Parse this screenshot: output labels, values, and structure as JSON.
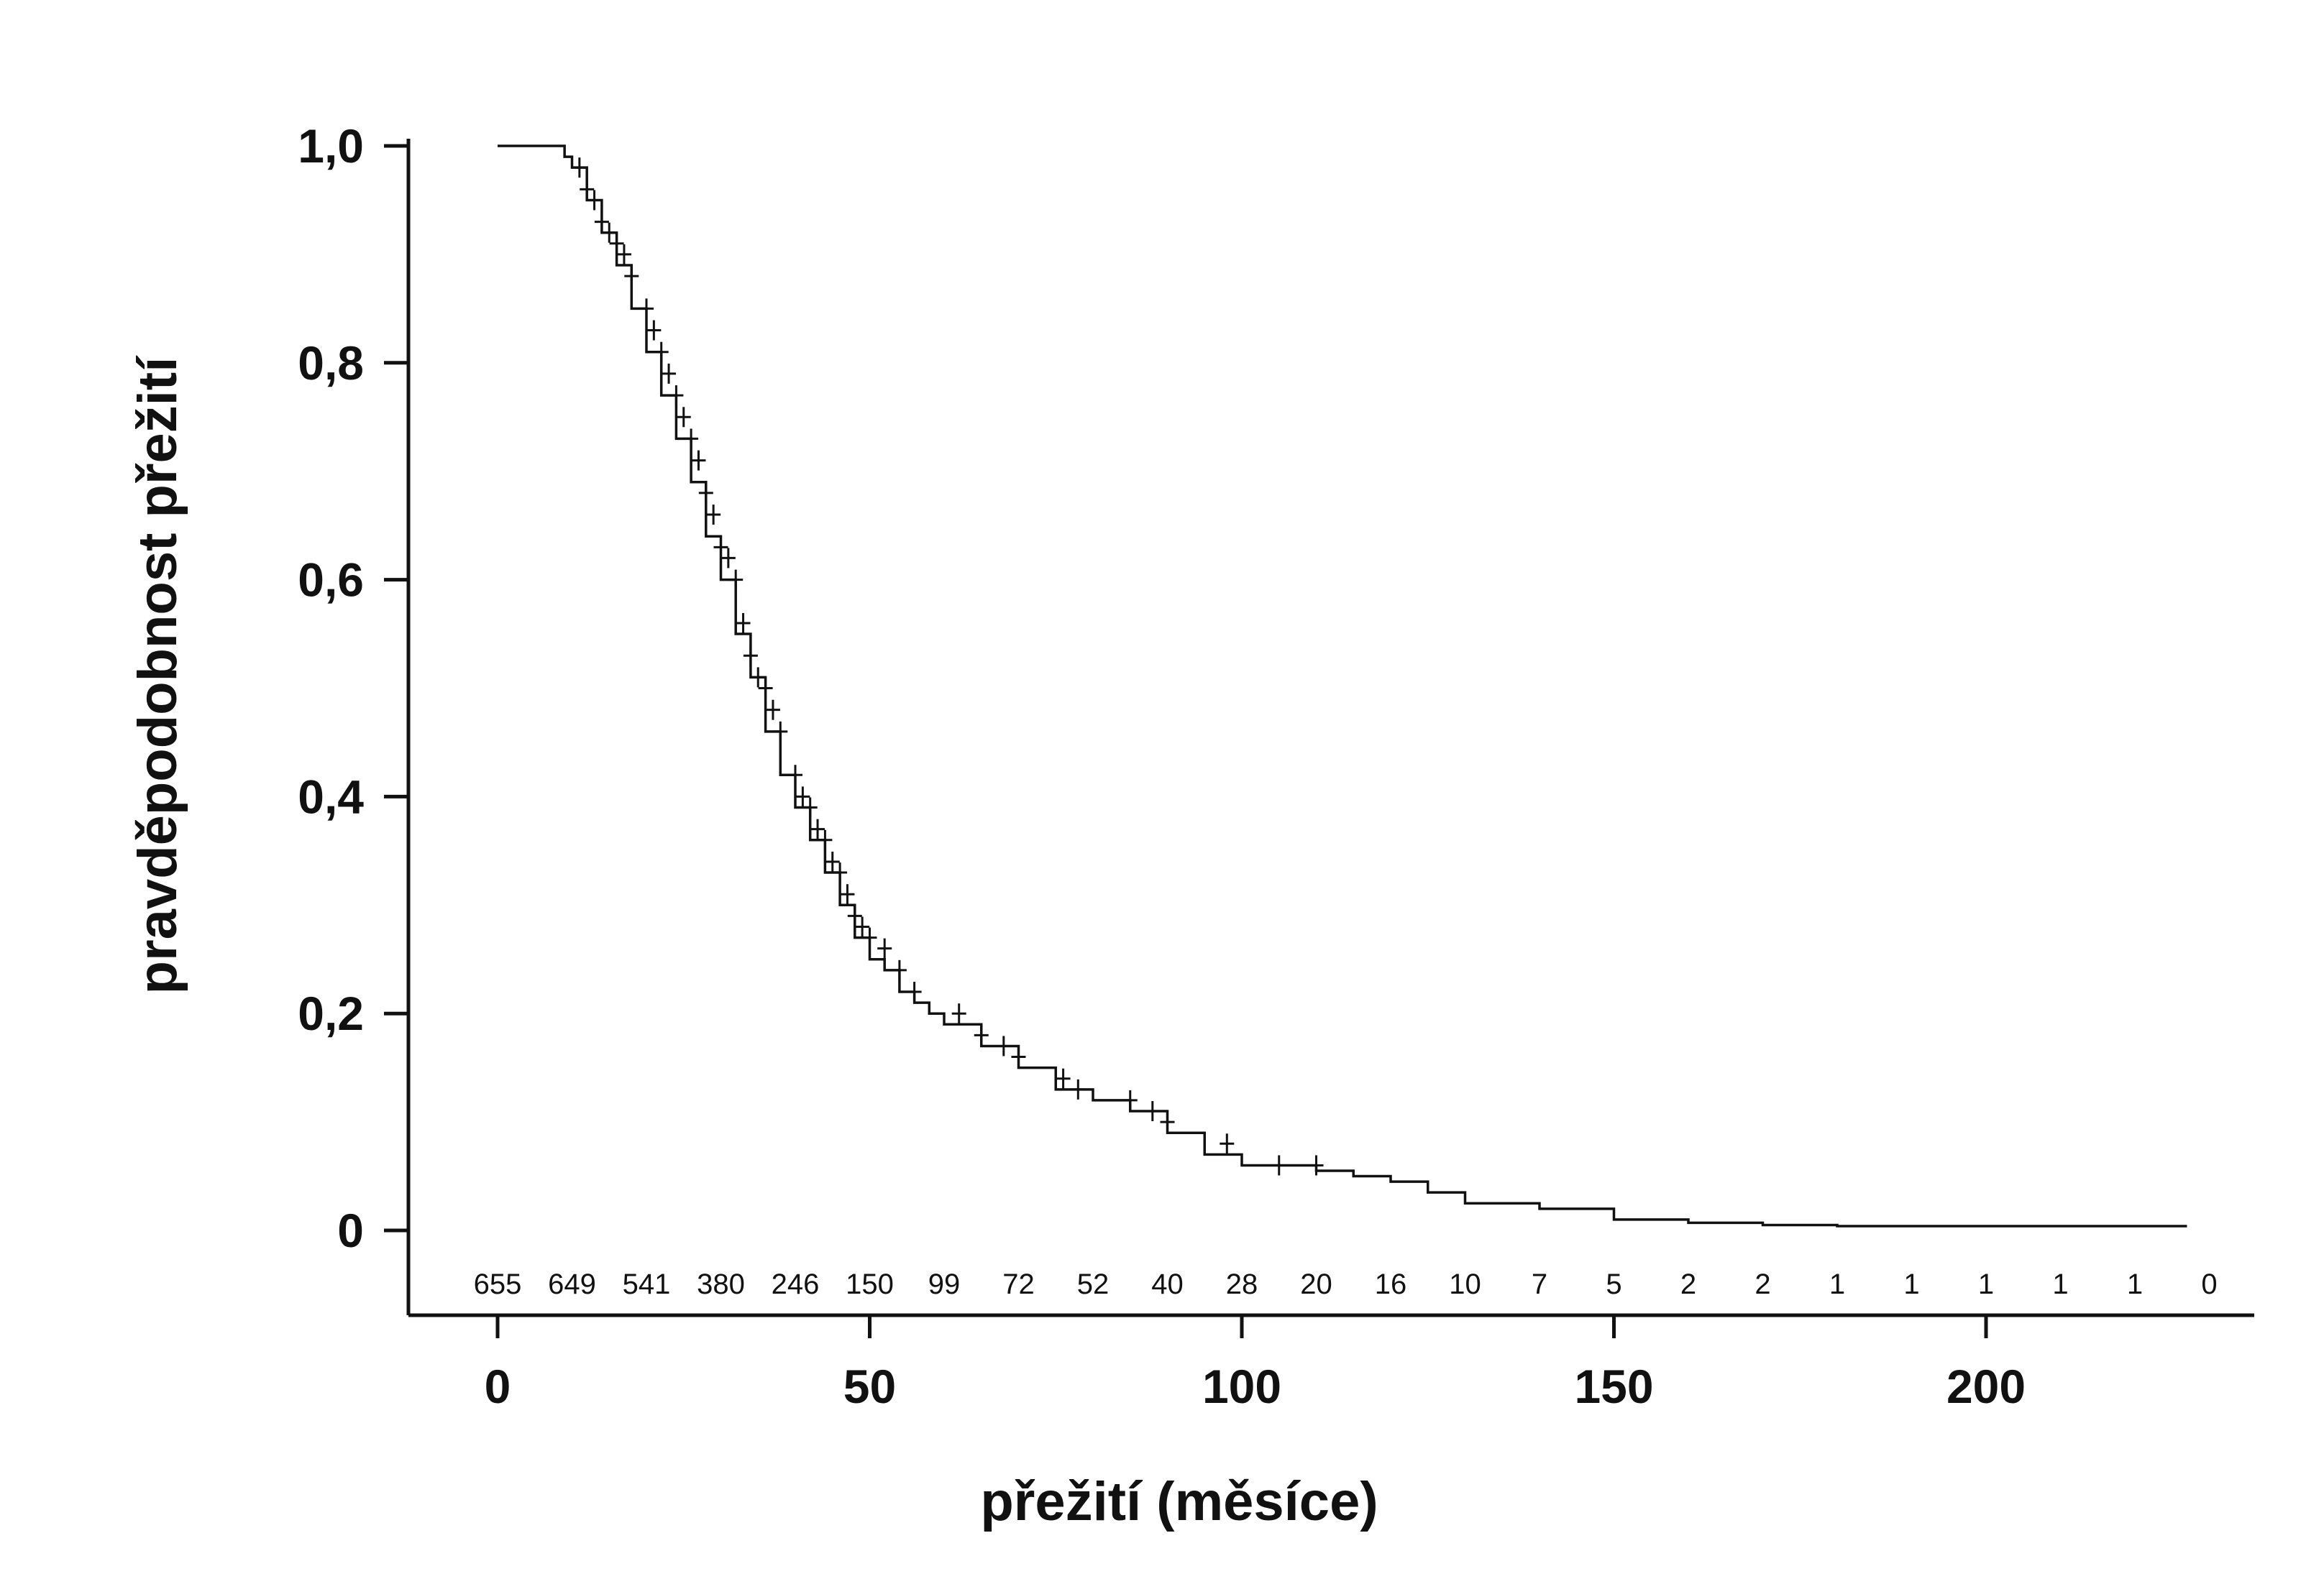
{
  "chart_data": {
    "type": "line",
    "subtype": "kaplan-meier",
    "title": "",
    "xlabel": "přežití (měsíce)",
    "ylabel": "pravděpodobnost přežití",
    "xlim": [
      0,
      230
    ],
    "ylim": [
      0,
      1.0
    ],
    "grid": false,
    "x_ticks": [
      0,
      50,
      100,
      150,
      200
    ],
    "x_tick_labels": [
      "0",
      "50",
      "100",
      "150",
      "200"
    ],
    "y_ticks": [
      0,
      0.2,
      0.4,
      0.6,
      0.8,
      1.0
    ],
    "y_tick_labels": [
      "0",
      "0,2",
      "0,4",
      "0,6",
      "0,8",
      "1,0"
    ],
    "series": [
      {
        "values_x": [
          0,
          8,
          9,
          10,
          12,
          14,
          16,
          18,
          20,
          22,
          24,
          26,
          28,
          30,
          32,
          34,
          36,
          38,
          40,
          42,
          44,
          46,
          48,
          50,
          52,
          54,
          56,
          58,
          60,
          65,
          70,
          75,
          80,
          85,
          90,
          95,
          100,
          105,
          110,
          115,
          120,
          125,
          130,
          140,
          150,
          160,
          170,
          180,
          200,
          227
        ],
        "values_y": [
          1.0,
          1.0,
          0.99,
          0.98,
          0.95,
          0.92,
          0.89,
          0.85,
          0.81,
          0.77,
          0.73,
          0.69,
          0.64,
          0.6,
          0.55,
          0.51,
          0.46,
          0.42,
          0.39,
          0.36,
          0.33,
          0.3,
          0.27,
          0.25,
          0.24,
          0.22,
          0.21,
          0.2,
          0.19,
          0.17,
          0.15,
          0.13,
          0.12,
          0.11,
          0.09,
          0.07,
          0.06,
          0.06,
          0.055,
          0.05,
          0.045,
          0.035,
          0.025,
          0.02,
          0.01,
          0.007,
          0.005,
          0.004,
          0.004,
          0.004
        ],
        "censor_x": [
          11,
          12,
          13,
          14,
          15,
          16,
          17,
          18,
          20,
          21,
          22,
          23,
          24,
          25,
          26,
          27,
          28,
          29,
          30,
          31,
          32,
          33,
          34,
          35,
          36,
          37,
          38,
          40,
          41,
          42,
          43,
          44,
          45,
          46,
          47,
          48,
          49,
          50,
          52,
          54,
          56,
          62,
          65,
          68,
          70,
          76,
          78,
          85,
          88,
          90,
          98,
          105,
          110
        ],
        "censor_y": [
          0.98,
          0.96,
          0.95,
          0.93,
          0.92,
          0.91,
          0.9,
          0.88,
          0.85,
          0.83,
          0.81,
          0.79,
          0.77,
          0.75,
          0.73,
          0.71,
          0.68,
          0.66,
          0.63,
          0.62,
          0.6,
          0.56,
          0.53,
          0.51,
          0.5,
          0.48,
          0.46,
          0.42,
          0.4,
          0.39,
          0.37,
          0.36,
          0.34,
          0.33,
          0.31,
          0.29,
          0.28,
          0.27,
          0.26,
          0.24,
          0.22,
          0.2,
          0.18,
          0.17,
          0.16,
          0.14,
          0.13,
          0.12,
          0.11,
          0.1,
          0.08,
          0.06,
          0.06
        ]
      }
    ],
    "at_risk": {
      "x": [
        0,
        10,
        20,
        30,
        40,
        50,
        60,
        70,
        80,
        90,
        100,
        110,
        120,
        130,
        140,
        150,
        160,
        170,
        180,
        190,
        200,
        210,
        220,
        230
      ],
      "labels": [
        "655",
        "649",
        "541",
        "380",
        "246",
        "150",
        "99",
        "72",
        "52",
        "40",
        "28",
        "20",
        "16",
        "10",
        "7",
        "5",
        "2",
        "2",
        "1",
        "1",
        "1",
        "1",
        "1",
        "0"
      ]
    }
  }
}
